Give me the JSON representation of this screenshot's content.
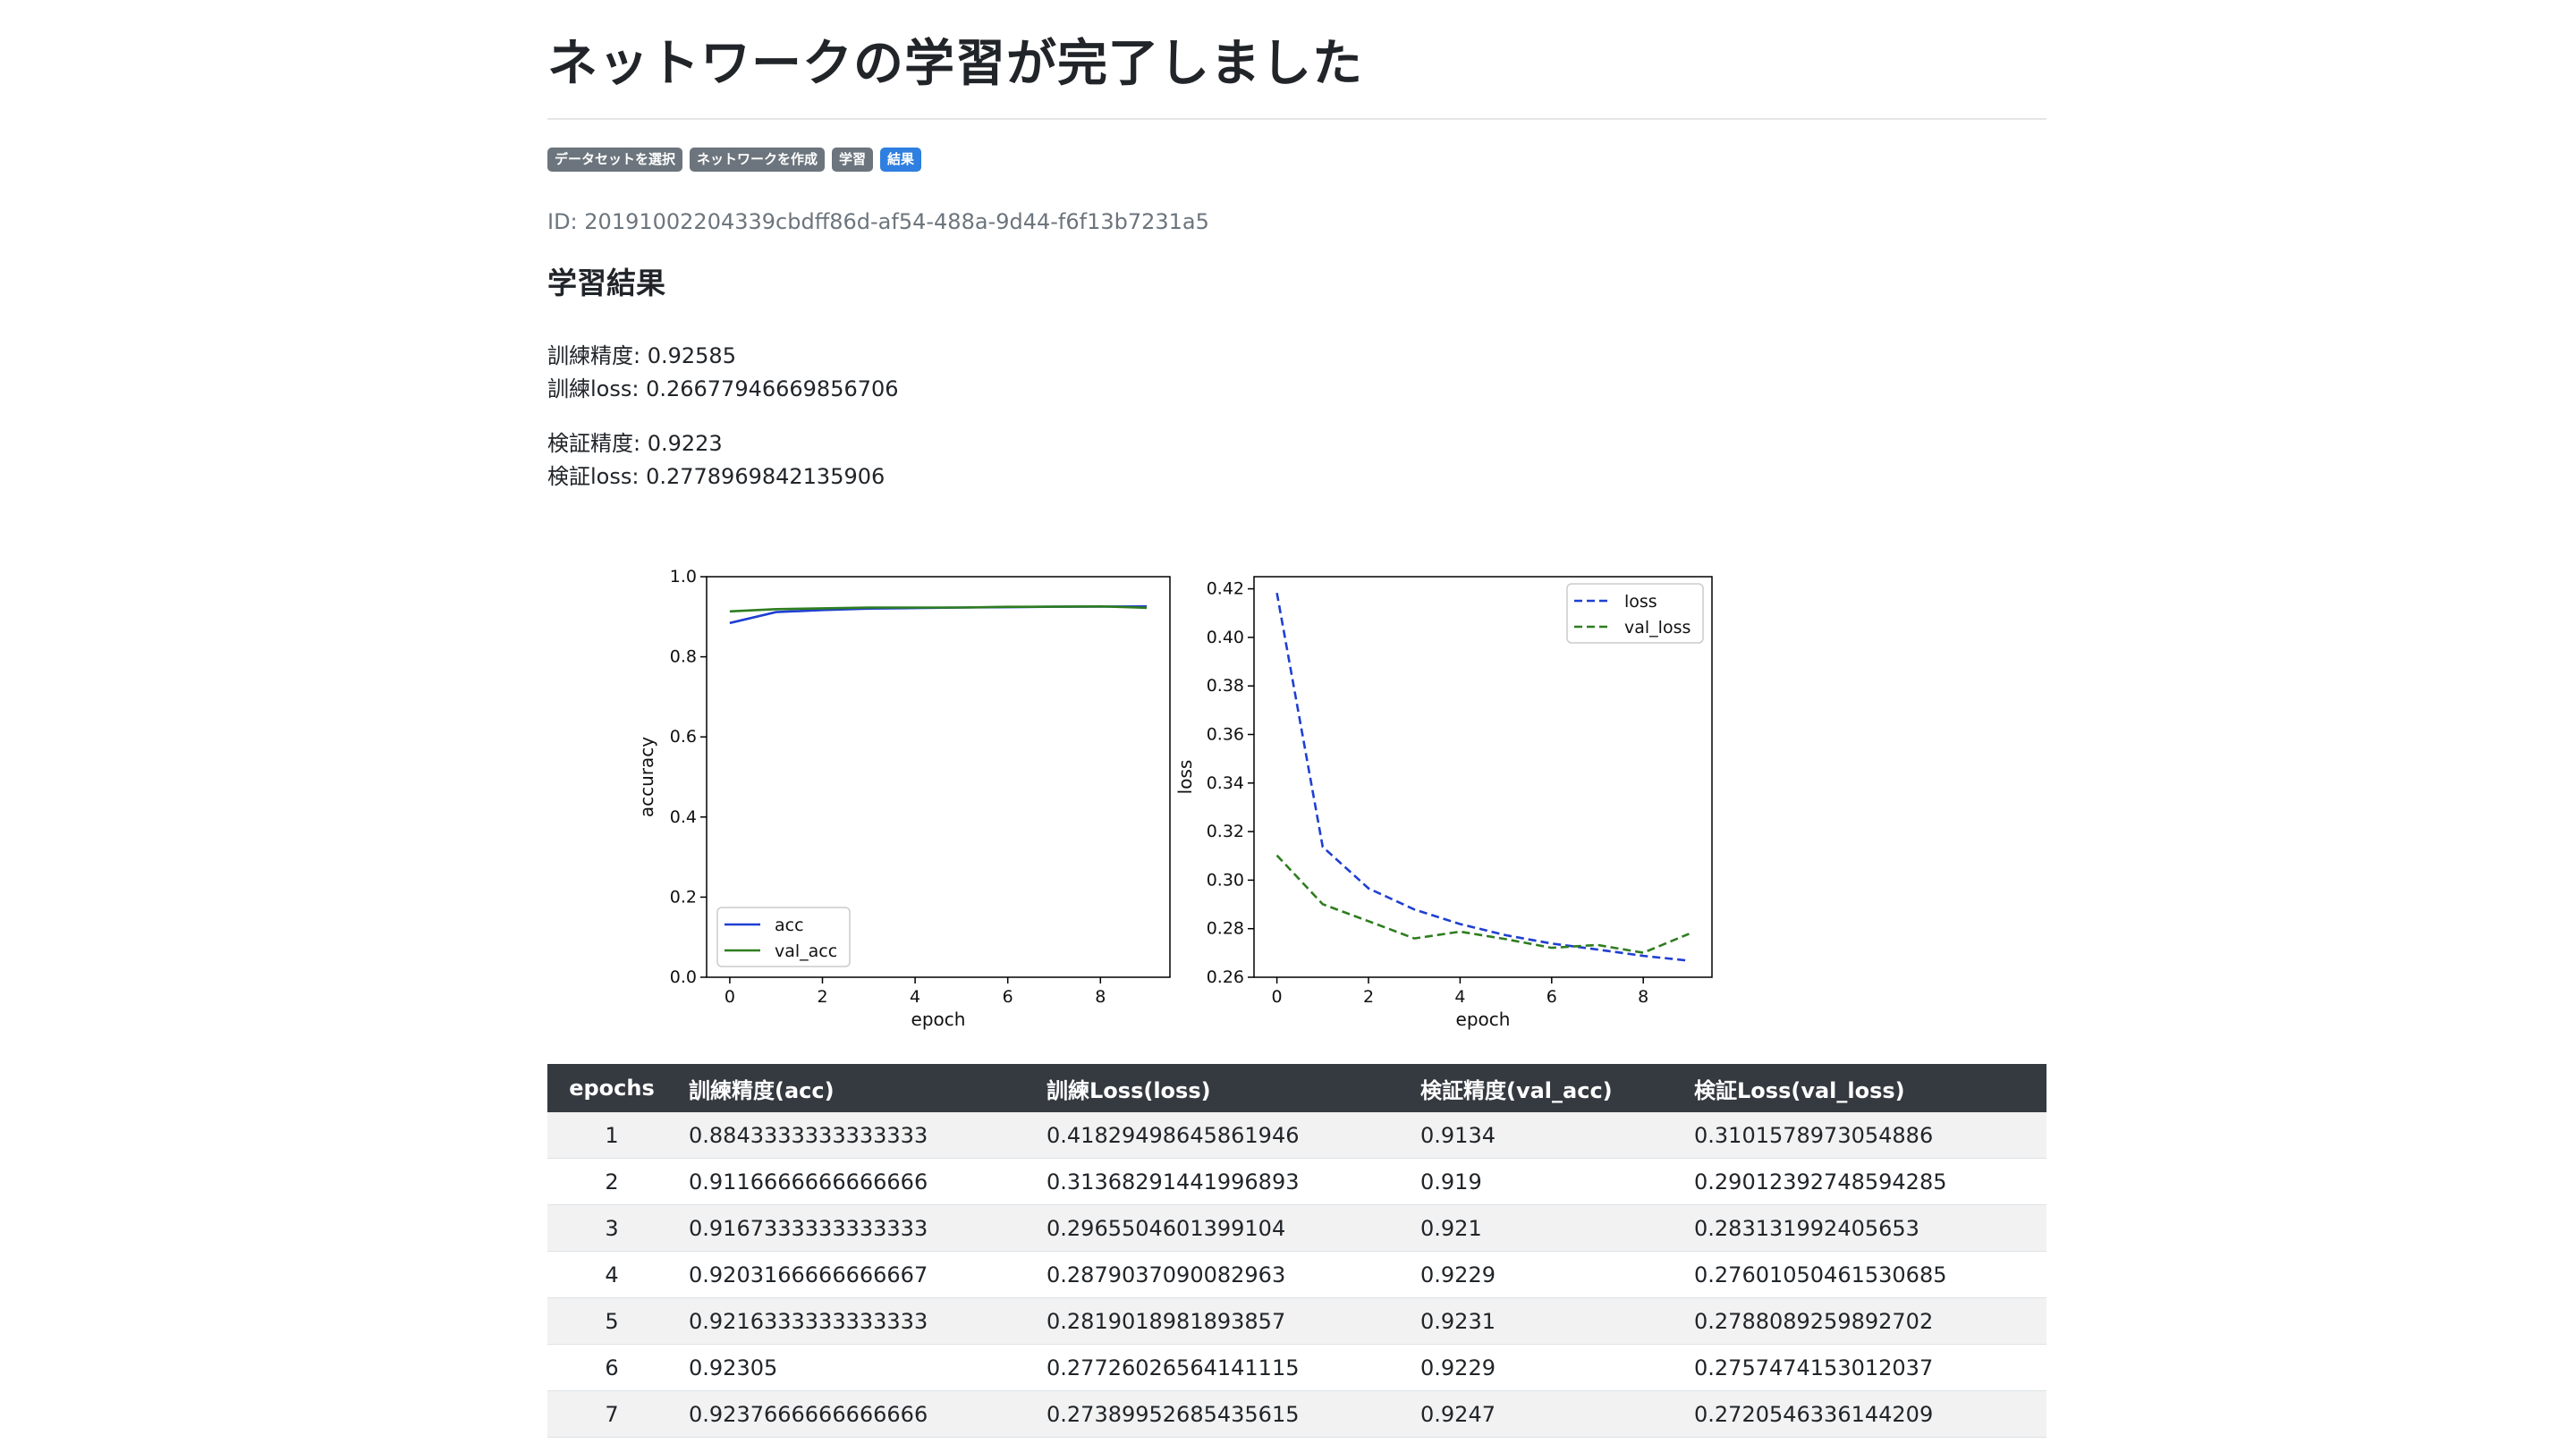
{
  "page": {
    "title": "ネットワークの学習が完了しました",
    "run_id": "ID: 20191002204339cbdff86d-af54-488a-9d44-f6f13b7231a5",
    "section_title": "学習結果"
  },
  "steps": [
    {
      "label": "データセットを選択",
      "active": false
    },
    {
      "label": "ネットワークを作成",
      "active": false
    },
    {
      "label": "学習",
      "active": false
    },
    {
      "label": "結果",
      "active": true
    }
  ],
  "metrics": {
    "train_acc": "訓練精度: 0.92585",
    "train_loss": "訓練loss: 0.26677946669856706",
    "val_acc": "検証精度: 0.9223",
    "val_loss": "検証loss: 0.2778969842135906"
  },
  "colors": {
    "train": "#1f3fd1",
    "val": "#2e7d1f",
    "table_header": "#343a40",
    "active_step": "#2f7fe0",
    "step": "#6c757d"
  },
  "chart_data": [
    {
      "type": "line",
      "xlabel": "epoch",
      "ylabel": "accuracy",
      "xlim": [
        0,
        9
      ],
      "ylim": [
        0.0,
        1.0
      ],
      "xticks": [
        "0",
        "2",
        "4",
        "6",
        "8"
      ],
      "yticks": [
        "0.0",
        "0.2",
        "0.4",
        "0.6",
        "0.8",
        "1.0"
      ],
      "legend_position": "lower-left",
      "x": [
        0,
        1,
        2,
        3,
        4,
        5,
        6,
        7,
        8,
        9
      ],
      "series": [
        {
          "name": "acc",
          "style": "solid",
          "color": "#1f3fd1",
          "values": [
            0.8843,
            0.9117,
            0.9167,
            0.9203,
            0.9216,
            0.9231,
            0.9238,
            0.925,
            0.9255,
            0.9259
          ]
        },
        {
          "name": "val_acc",
          "style": "solid",
          "color": "#2e7d1f",
          "values": [
            0.9134,
            0.919,
            0.921,
            0.9229,
            0.9231,
            0.9229,
            0.9247,
            0.925,
            0.926,
            0.9223
          ]
        }
      ]
    },
    {
      "type": "line",
      "xlabel": "epoch",
      "ylabel": "loss",
      "xlim": [
        0,
        9
      ],
      "ylim": [
        0.26,
        0.425
      ],
      "xticks": [
        "0",
        "2",
        "4",
        "6",
        "8"
      ],
      "yticks": [
        "0.26",
        "0.28",
        "0.30",
        "0.32",
        "0.34",
        "0.36",
        "0.38",
        "0.40",
        "0.42"
      ],
      "legend_position": "upper-right",
      "x": [
        0,
        1,
        2,
        3,
        4,
        5,
        6,
        7,
        8,
        9
      ],
      "series": [
        {
          "name": "loss",
          "style": "dashed",
          "color": "#1f3fd1",
          "values": [
            0.4183,
            0.3137,
            0.2966,
            0.2879,
            0.2819,
            0.2773,
            0.2739,
            0.2714,
            0.2688,
            0.2668
          ]
        },
        {
          "name": "val_loss",
          "style": "dashed",
          "color": "#2e7d1f",
          "values": [
            0.3102,
            0.2901,
            0.2831,
            0.276,
            0.2788,
            0.2757,
            0.2721,
            0.2733,
            0.2701,
            0.2779
          ]
        }
      ]
    }
  ],
  "table": {
    "headers": [
      "epochs",
      "訓練精度(acc)",
      "訓練Loss(loss)",
      "検証精度(val_acc)",
      "検証Loss(val_loss)"
    ],
    "rows": [
      [
        "1",
        "0.8843333333333333",
        "0.41829498645861946",
        "0.9134",
        "0.3101578973054886"
      ],
      [
        "2",
        "0.9116666666666666",
        "0.31368291441996893",
        "0.919",
        "0.29012392748594285"
      ],
      [
        "3",
        "0.9167333333333333",
        "0.2965504601399104",
        "0.921",
        "0.283131992405653"
      ],
      [
        "4",
        "0.9203166666666667",
        "0.2879037090082963",
        "0.9229",
        "0.27601050461530685"
      ],
      [
        "5",
        "0.9216333333333333",
        "0.2819018981893857",
        "0.9231",
        "0.2788089259892702"
      ],
      [
        "6",
        "0.92305",
        "0.27726026564141115",
        "0.9229",
        "0.2757474153012037"
      ],
      [
        "7",
        "0.9237666666666666",
        "0.27389952685435615",
        "0.9247",
        "0.2720546336144209"
      ]
    ]
  }
}
